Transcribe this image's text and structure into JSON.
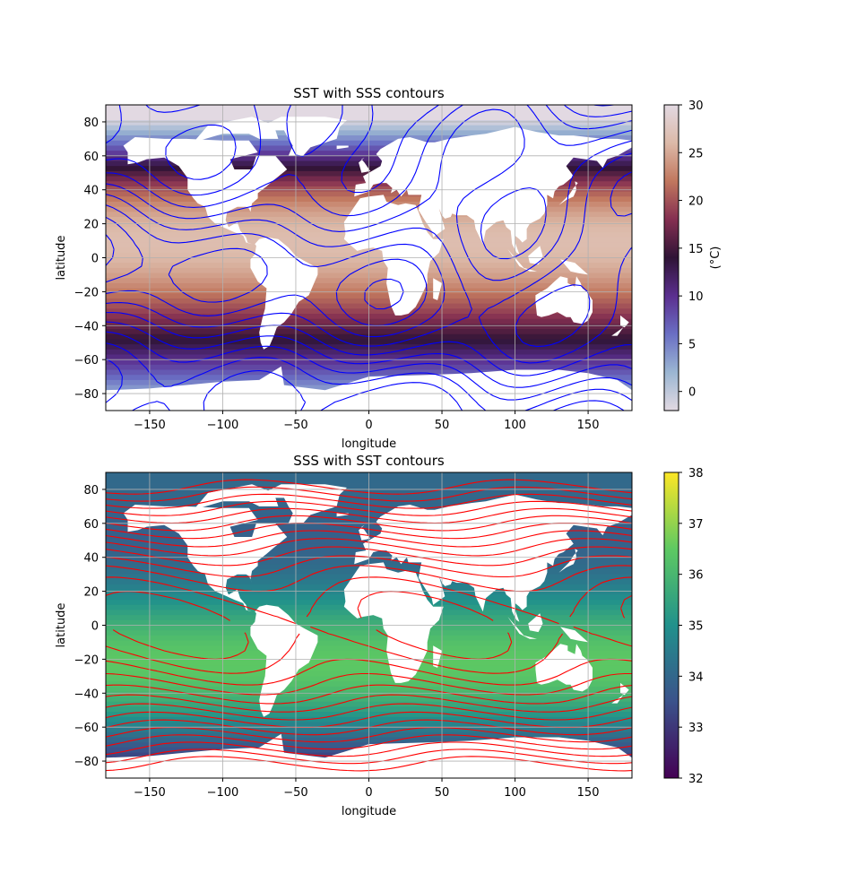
{
  "chart_data": [
    {
      "type": "heatmap",
      "title": "SST with SSS contours",
      "xlabel": "longitude",
      "ylabel": "latitude",
      "xlim": [
        -180,
        180
      ],
      "ylim": [
        -90,
        90
      ],
      "xticks": [
        -150,
        -100,
        -50,
        0,
        50,
        100,
        150
      ],
      "yticks": [
        -80,
        -60,
        -40,
        -20,
        0,
        20,
        40,
        60,
        80
      ],
      "grid": true,
      "colorbar": {
        "label": "(°C)",
        "range": [
          -2,
          30
        ],
        "ticks": [
          0,
          5,
          10,
          15,
          20,
          25,
          30
        ],
        "colormap": "twilight",
        "colors": [
          "#e2d9e2",
          "#9bb6d2",
          "#6a6fc4",
          "#5b2f8f",
          "#2f1436",
          "#842f51",
          "#c1775e",
          "#dcb9a8",
          "#e2d9e2"
        ]
      },
      "contours": {
        "variable": "SSS",
        "color": "#0000ff"
      }
    },
    {
      "type": "heatmap",
      "title": "SSS with SST contours",
      "xlabel": "longitude",
      "ylabel": "latitude",
      "xlim": [
        -180,
        180
      ],
      "ylim": [
        -90,
        90
      ],
      "xticks": [
        -150,
        -100,
        -50,
        0,
        50,
        100,
        150
      ],
      "yticks": [
        -80,
        -60,
        -40,
        -20,
        0,
        20,
        40,
        60,
        80
      ],
      "grid": true,
      "colorbar": {
        "label": "",
        "range": [
          32,
          38
        ],
        "ticks": [
          32,
          33,
          34,
          35,
          36,
          37,
          38
        ],
        "colormap": "viridis",
        "colors": [
          "#440154",
          "#3b528b",
          "#21918c",
          "#5ec962",
          "#fde725"
        ]
      },
      "contours": {
        "variable": "SST",
        "color": "#ff0000"
      }
    }
  ],
  "land_color": "#ffffff",
  "grid_color": "#b0b0b0"
}
